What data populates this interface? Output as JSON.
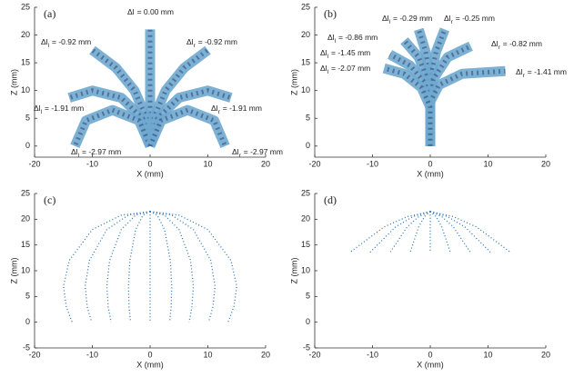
{
  "chart_data": [
    {
      "type": "arm",
      "title": "(a)",
      "xlabel": "X (mm)",
      "ylabel": "Z (mm)",
      "xlim": [
        -20,
        20
      ],
      "ylim": [
        -2,
        25
      ],
      "xticks": [
        -20,
        -10,
        0,
        10,
        20
      ],
      "yticks": [
        0,
        5,
        10,
        15,
        20,
        25
      ],
      "color": "#6fa8cf",
      "series": [
        {
          "x": [
            0,
            0,
            0
          ],
          "y": [
            0,
            10.5,
            21
          ],
          "annotation": {
            "symbol": "Δl",
            "text": "= 0.00 mm"
          }
        },
        {
          "x": [
            0,
            -0.7,
            -2.7,
            -5.9,
            -10
          ],
          "y": [
            0,
            5.2,
            10,
            14.1,
            17.3
          ],
          "annotation": {
            "symbol": "Δl",
            "sub": "l",
            "text": "= -0.92 mm"
          }
        },
        {
          "x": [
            0,
            0.7,
            2.7,
            5.9,
            10
          ],
          "y": [
            0,
            5.2,
            10,
            14.1,
            17.3
          ],
          "annotation": {
            "symbol": "Δl",
            "sub": "r",
            "text": "= -0.92 mm"
          }
        },
        {
          "x": [
            0,
            -1.3,
            -5,
            -10,
            -14
          ],
          "y": [
            0,
            5,
            8.7,
            10,
            8.7
          ],
          "annotation": {
            "symbol": "Δl",
            "sub": "l",
            "text": "= -1.91 mm"
          }
        },
        {
          "x": [
            0,
            1.3,
            5,
            10,
            14
          ],
          "y": [
            0,
            5,
            8.7,
            10,
            8.7
          ],
          "annotation": {
            "symbol": "Δl",
            "sub": "r",
            "text": "= -1.91 mm"
          }
        },
        {
          "x": [
            0,
            -1.9,
            -6.5,
            -11.1,
            -13
          ],
          "y": [
            0,
            4.6,
            6.5,
            4.6,
            0
          ],
          "annotation": {
            "symbol": "Δl",
            "sub": "l",
            "text": "= -2.97 mm"
          }
        },
        {
          "x": [
            0,
            1.9,
            6.5,
            11.1,
            13
          ],
          "y": [
            0,
            4.6,
            6.5,
            4.6,
            0
          ],
          "annotation": {
            "symbol": "Δl",
            "sub": "r",
            "text": "= -2.97 mm"
          }
        }
      ]
    },
    {
      "type": "arm",
      "title": "(b)",
      "xlabel": "X (mm)",
      "ylabel": "Z (mm)",
      "xlim": [
        -20,
        20
      ],
      "ylim": [
        -2,
        25
      ],
      "xticks": [
        -20,
        -10,
        0,
        10,
        20
      ],
      "yticks": [
        0,
        5,
        10,
        15,
        20,
        25
      ],
      "color": "#6fa8cf",
      "series": [
        {
          "x": [
            0,
            0,
            0,
            -0.8,
            -2
          ],
          "y": [
            0,
            8,
            12,
            17,
            21
          ],
          "annotation": {
            "symbol": "Δl",
            "sub": "l",
            "text": "= -0.29 mm"
          }
        },
        {
          "x": [
            0,
            0,
            0,
            1,
            2.5
          ],
          "y": [
            0,
            8,
            12,
            17,
            21
          ],
          "annotation": {
            "symbol": "Δl",
            "sub": "r",
            "text": "= -0.25 mm"
          }
        },
        {
          "x": [
            0,
            0,
            -0.5,
            -2,
            -4.5
          ],
          "y": [
            0,
            8,
            12,
            16,
            19
          ],
          "annotation": {
            "symbol": "Δl",
            "sub": "l",
            "text": "= -0.86 mm"
          }
        },
        {
          "x": [
            0,
            0,
            0.5,
            3,
            7
          ],
          "y": [
            0,
            8,
            12,
            16,
            18
          ],
          "annotation": {
            "symbol": "Δl",
            "sub": "r",
            "text": "= -0.82 mm"
          }
        },
        {
          "x": [
            0,
            0,
            -1,
            -3.5,
            -7
          ],
          "y": [
            0,
            8,
            11.5,
            14.5,
            16.5
          ],
          "annotation": {
            "symbol": "Δl",
            "sub": "l",
            "text": "= -1.45 mm"
          }
        },
        {
          "x": [
            0,
            0,
            1.5,
            5.5,
            13
          ],
          "y": [
            0,
            8,
            11,
            13,
            13.5
          ],
          "annotation": {
            "symbol": "Δl",
            "sub": "r",
            "text": "= -1.41 mm"
          }
        },
        {
          "x": [
            0,
            0,
            -1.5,
            -4.5,
            -8
          ],
          "y": [
            0,
            7,
            10.5,
            13,
            14
          ],
          "annotation": {
            "symbol": "Δl",
            "sub": "l",
            "text": "= -2.07 mm"
          }
        }
      ]
    },
    {
      "type": "dotted",
      "title": "(c)",
      "xlabel": "X (mm)",
      "ylabel": "Z (mm)",
      "xlim": [
        -20,
        20
      ],
      "ylim": [
        -5,
        25
      ],
      "xticks": [
        -20,
        -10,
        0,
        10,
        20
      ],
      "yticks": [
        -5,
        0,
        5,
        10,
        15,
        20,
        25
      ],
      "color": "#2e75b6",
      "series": [
        {
          "x": [
            0,
            -5,
            -10,
            -14,
            -15,
            -14.5,
            -13.5
          ],
          "y": [
            21.5,
            20.8,
            18,
            12,
            7,
            3,
            0
          ]
        },
        {
          "x": [
            0,
            -3.75,
            -7.5,
            -10.5,
            -11.25,
            -10.88,
            -10.13
          ],
          "y": [
            21.5,
            20.8,
            18,
            12,
            7,
            3,
            0
          ]
        },
        {
          "x": [
            0,
            -2.5,
            -5,
            -7,
            -7.5,
            -7.25,
            -6.75
          ],
          "y": [
            21.5,
            20.8,
            18,
            12,
            7,
            3,
            0
          ]
        },
        {
          "x": [
            0,
            -1.25,
            -2.5,
            -3.5,
            -3.75,
            -3.63,
            -3.38
          ],
          "y": [
            21.5,
            20.8,
            18,
            12,
            7,
            3,
            0
          ]
        },
        {
          "x": [
            0,
            0,
            0,
            0,
            0,
            0,
            0
          ],
          "y": [
            21.5,
            20.8,
            18,
            12,
            7,
            3,
            0
          ]
        },
        {
          "x": [
            0,
            1.25,
            2.5,
            3.5,
            3.75,
            3.63,
            3.38
          ],
          "y": [
            21.5,
            20.8,
            18,
            12,
            7,
            3,
            0
          ]
        },
        {
          "x": [
            0,
            2.5,
            5,
            7,
            7.5,
            7.25,
            6.75
          ],
          "y": [
            21.5,
            20.8,
            18,
            12,
            7,
            3,
            0
          ]
        },
        {
          "x": [
            0,
            3.75,
            7.5,
            10.5,
            11.25,
            10.88,
            10.13
          ],
          "y": [
            21.5,
            20.8,
            18,
            12,
            7,
            3,
            0
          ]
        },
        {
          "x": [
            0,
            5,
            10,
            14,
            15,
            14.5,
            13.5
          ],
          "y": [
            21.5,
            20.8,
            18,
            12,
            7,
            3,
            0
          ]
        }
      ]
    },
    {
      "type": "dotted",
      "title": "(d)",
      "xlabel": "X (mm)",
      "ylabel": "Z (mm)",
      "xlim": [
        -20,
        20
      ],
      "ylim": [
        -5,
        25
      ],
      "xticks": [
        -20,
        -10,
        0,
        10,
        20
      ],
      "yticks": [
        -5,
        0,
        5,
        10,
        15,
        20,
        25
      ],
      "color": "#2e75b6",
      "series": [
        {
          "x": [
            0,
            -4,
            -8,
            -11,
            -14
          ],
          "y": [
            21.5,
            20.5,
            18.5,
            16,
            13.5
          ]
        },
        {
          "x": [
            0,
            -3,
            -6,
            -8.25,
            -10.5
          ],
          "y": [
            21.5,
            20.5,
            18.5,
            16,
            13.5
          ]
        },
        {
          "x": [
            0,
            -2,
            -4,
            -5.5,
            -7
          ],
          "y": [
            21.5,
            20.5,
            18.5,
            16,
            13.5
          ]
        },
        {
          "x": [
            0,
            -1,
            -2,
            -2.75,
            -3.5
          ],
          "y": [
            21.5,
            20.5,
            18.5,
            16,
            13.5
          ]
        },
        {
          "x": [
            0,
            0,
            0,
            0,
            0
          ],
          "y": [
            21.5,
            20.5,
            18.5,
            16,
            13.5
          ]
        },
        {
          "x": [
            0,
            1,
            2,
            2.75,
            3.5
          ],
          "y": [
            21.5,
            20.5,
            18.5,
            16,
            13.5
          ]
        },
        {
          "x": [
            0,
            2,
            4,
            5.5,
            7
          ],
          "y": [
            21.5,
            20.5,
            18.5,
            16,
            13.5
          ]
        },
        {
          "x": [
            0,
            3,
            6,
            8.25,
            10.5
          ],
          "y": [
            21.5,
            20.5,
            18.5,
            16,
            13.5
          ]
        },
        {
          "x": [
            0,
            4,
            8,
            11,
            14
          ],
          "y": [
            21.5,
            20.5,
            18.5,
            16,
            13.5
          ]
        }
      ]
    }
  ]
}
